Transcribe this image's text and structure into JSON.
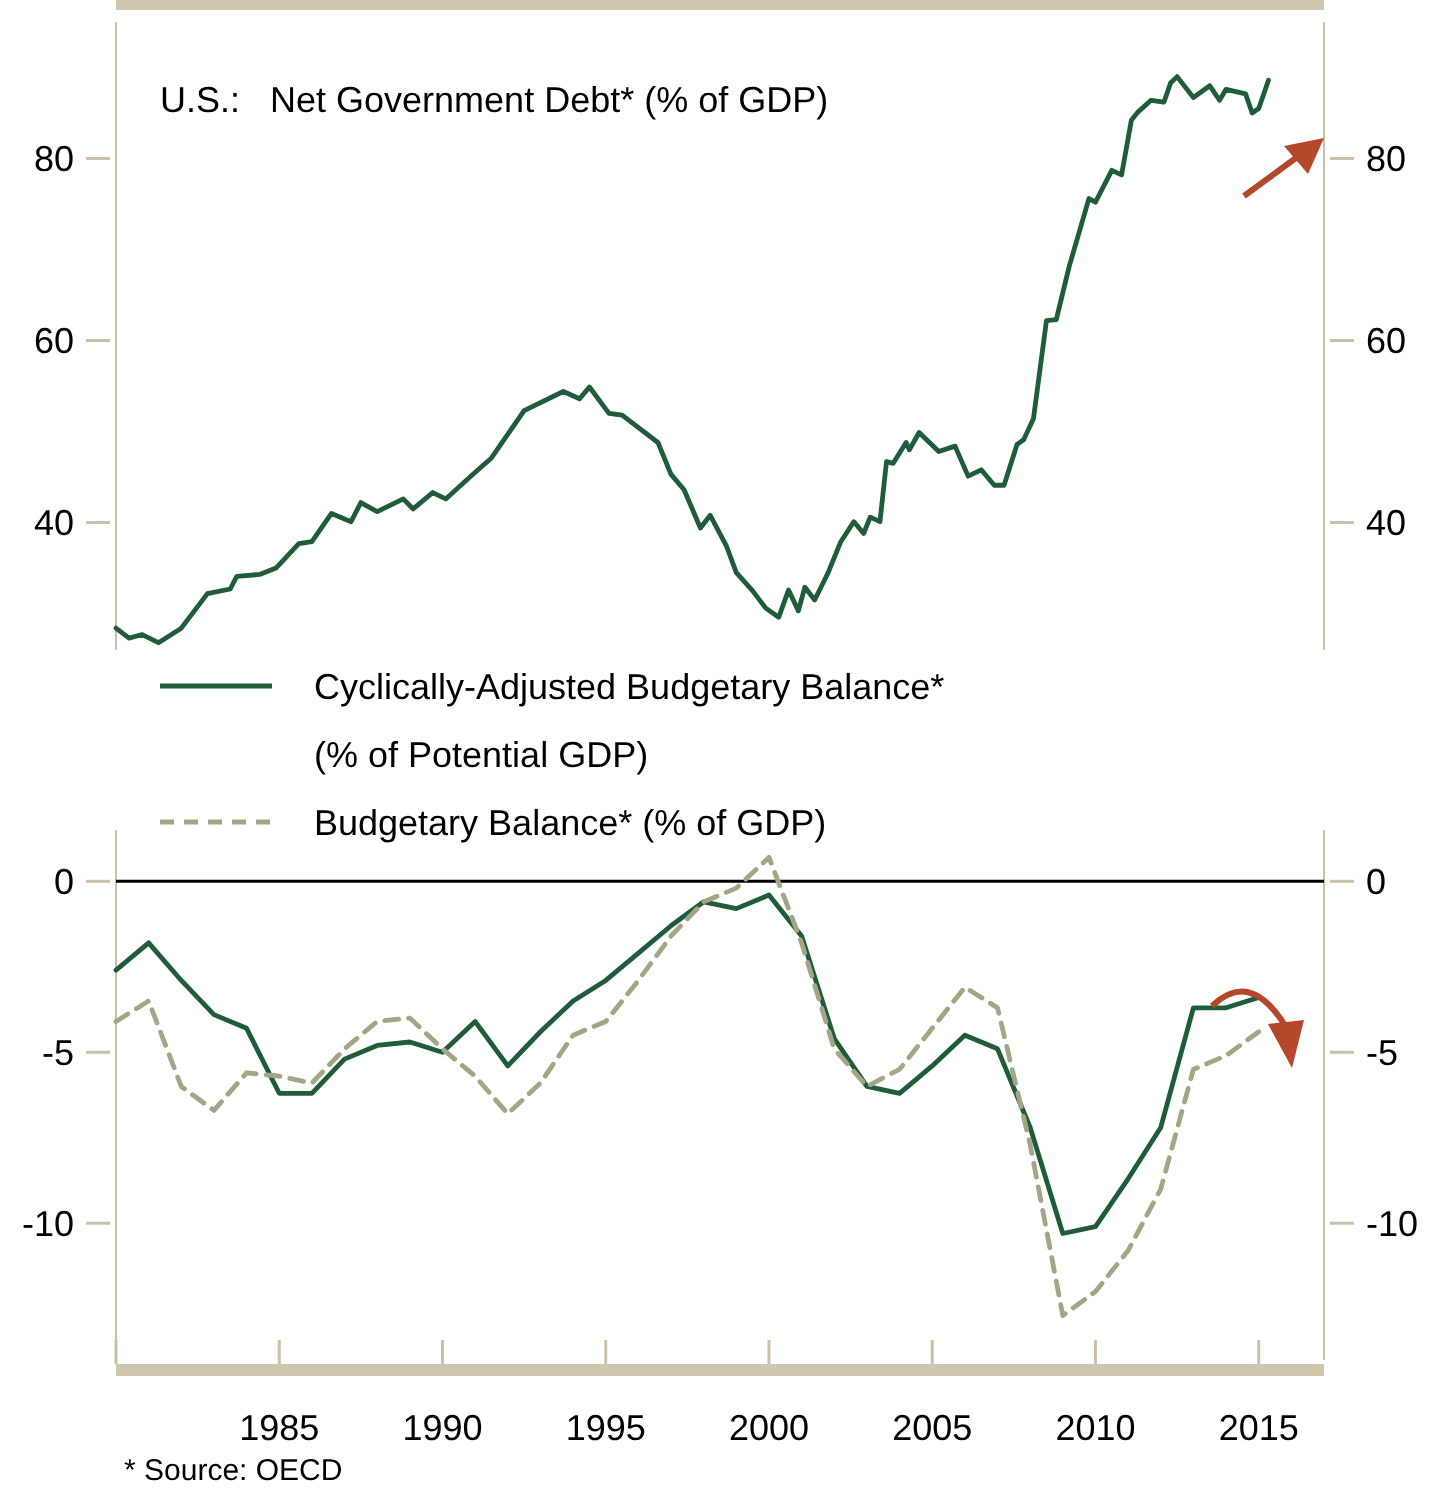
{
  "chart_data": [
    {
      "type": "line",
      "title": "U.S.:   Net Government Debt* (% of GDP)",
      "xlim": [
        1980,
        2017
      ],
      "ylim": [
        26,
        95
      ],
      "yticks": [
        40,
        60,
        80
      ],
      "y2lim": [
        26,
        95
      ],
      "y2ticks": [
        40,
        60,
        80
      ],
      "tick_labels": "y",
      "series": [
        {
          "color": "#1e5c3a",
          "x": [
            1980.0,
            1980.4,
            1980.8,
            1981.3,
            1982.0,
            1982.8,
            1983.5,
            1983.7,
            1984.4,
            1984.9,
            1985.6,
            1986.0,
            1986.6,
            1987.2,
            1987.5,
            1988.0,
            1988.8,
            1989.1,
            1989.7,
            1990.1,
            1990.9,
            1991.5,
            1992.5,
            1993.7,
            1994.2,
            1994.5,
            1995.1,
            1995.5,
            1996.6,
            1997.0,
            1997.4,
            1997.9,
            1998.2,
            1998.7,
            1999.0,
            1999.5,
            1999.9,
            2000.3,
            2000.6,
            2000.9,
            2001.1,
            2001.4,
            2001.8,
            2002.2,
            2002.6,
            2002.9,
            2003.1,
            2003.4,
            2003.6,
            2003.8,
            2004.2,
            2004.3,
            2004.6,
            2005.2,
            2005.7,
            2006.1,
            2006.5,
            2006.9,
            2007.2,
            2007.6,
            2007.8,
            2008.1,
            2008.5,
            2008.8,
            2009.2,
            2009.8,
            2010.0,
            2010.5,
            2010.8,
            2011.1,
            2011.3,
            2011.7,
            2012.1,
            2012.3,
            2012.5,
            2013.0,
            2013.5,
            2013.8,
            2014.0,
            2014.6,
            2014.8,
            2015.0,
            2015.3
          ],
          "values": [
            28.4,
            27.3,
            27.7,
            26.8,
            28.4,
            32.2,
            32.7,
            34.1,
            34.3,
            35.0,
            37.7,
            37.9,
            41.0,
            40.1,
            42.2,
            41.2,
            42.6,
            41.5,
            43.3,
            42.6,
            45.2,
            47.1,
            52.3,
            54.4,
            53.6,
            54.9,
            52.0,
            51.8,
            48.8,
            45.3,
            43.6,
            39.4,
            40.8,
            37.4,
            34.5,
            32.5,
            30.6,
            29.6,
            32.6,
            30.3,
            32.9,
            31.5,
            34.4,
            37.9,
            40.1,
            38.8,
            40.6,
            40.1,
            46.7,
            46.5,
            48.8,
            48.0,
            49.9,
            47.8,
            48.4,
            45.1,
            45.8,
            44.1,
            44.1,
            48.6,
            49.1,
            51.4,
            62.2,
            62.3,
            68.2,
            75.6,
            75.2,
            78.7,
            78.2,
            84.2,
            85.1,
            86.4,
            86.2,
            88.3,
            89.0,
            86.7,
            88.0,
            86.4,
            87.6,
            87.1,
            85.0,
            85.5,
            88.6
          ]
        }
      ]
    },
    {
      "type": "line",
      "x": [
        1980,
        1981,
        1982,
        1983,
        1984,
        1985,
        1986,
        1987,
        1988,
        1989,
        1990,
        1991,
        1992,
        1993,
        1994,
        1995,
        1996,
        1997,
        1998,
        1999,
        2000,
        2001,
        2002,
        2003,
        2004,
        2005,
        2006,
        2007,
        2008,
        2009,
        2010,
        2011,
        2012,
        2013,
        2014,
        2015
      ],
      "xlim": [
        1980,
        2017
      ],
      "xticks": [
        {
          "value": 1980,
          "label": null
        },
        1985,
        1990,
        1995,
        2000,
        2005,
        2010,
        2015
      ],
      "ylim": [
        -14,
        1.5
      ],
      "yticks": [
        -10,
        -5,
        0
      ],
      "y2lim": [
        -14,
        1.5
      ],
      "y2ticks": [
        -10,
        -5,
        0
      ],
      "legend": "top left",
      "ref_lines": [
        {
          "axis": "y",
          "value": 0,
          "color": "#000000"
        }
      ],
      "annotations": [
        "* Source: OECD"
      ],
      "series": [
        {
          "name": "Cyclically-Adjusted Budgetary Balance* (% of Potential GDP)",
          "color": "#1e5c3a",
          "line_style": "solid",
          "values": [
            -2.6,
            -1.8,
            -2.9,
            -3.9,
            -4.3,
            -6.2,
            -6.2,
            -5.2,
            -4.8,
            -4.7,
            -5.0,
            -4.1,
            -5.4,
            -4.4,
            -3.5,
            -2.9,
            -2.1,
            -1.3,
            -0.6,
            -0.8,
            -0.4,
            -1.6,
            -4.6,
            -6.0,
            -6.2,
            -5.4,
            -4.5,
            -4.9,
            -7.2,
            -10.3,
            -10.1,
            -8.7,
            -7.2,
            -3.7,
            -3.7,
            -3.4
          ]
        },
        {
          "name": "Budgetary Balance* (% of GDP)",
          "color": "#a3a585",
          "line_style": "dashed",
          "values": [
            -4.1,
            -3.5,
            -6.0,
            -6.7,
            -5.6,
            -5.7,
            -5.9,
            -4.9,
            -4.1,
            -4.0,
            -4.9,
            -5.7,
            -6.8,
            -5.9,
            -4.5,
            -4.1,
            -2.9,
            -1.6,
            -0.6,
            -0.2,
            0.7,
            -1.8,
            -4.9,
            -6.0,
            -5.5,
            -4.3,
            -3.1,
            -3.7,
            -7.7,
            -12.7,
            -12.0,
            -10.8,
            -9.0,
            -5.5,
            -5.1,
            -4.4
          ]
        }
      ]
    }
  ]
}
